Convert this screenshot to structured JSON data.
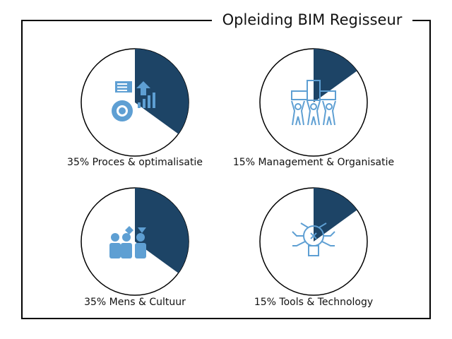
{
  "title": "Opleiding BIM Regisseur",
  "colors": {
    "slice": "#1d4466",
    "icon": "#5e9fd3",
    "outline": "#000000"
  },
  "chart_data": {
    "type": "pie",
    "items": [
      {
        "label": "35% Proces & optimalisatie",
        "value": 35,
        "icon": "process-gear-chart-icon"
      },
      {
        "label": "15% Management & Organisatie",
        "value": 15,
        "icon": "people-lifting-buildings-icon"
      },
      {
        "label": "35% Mens & Cultuur",
        "value": 35,
        "icon": "team-people-icon"
      },
      {
        "label": "15% Tools & Technology",
        "value": 15,
        "icon": "lightbulb-circuit-icon"
      }
    ]
  }
}
